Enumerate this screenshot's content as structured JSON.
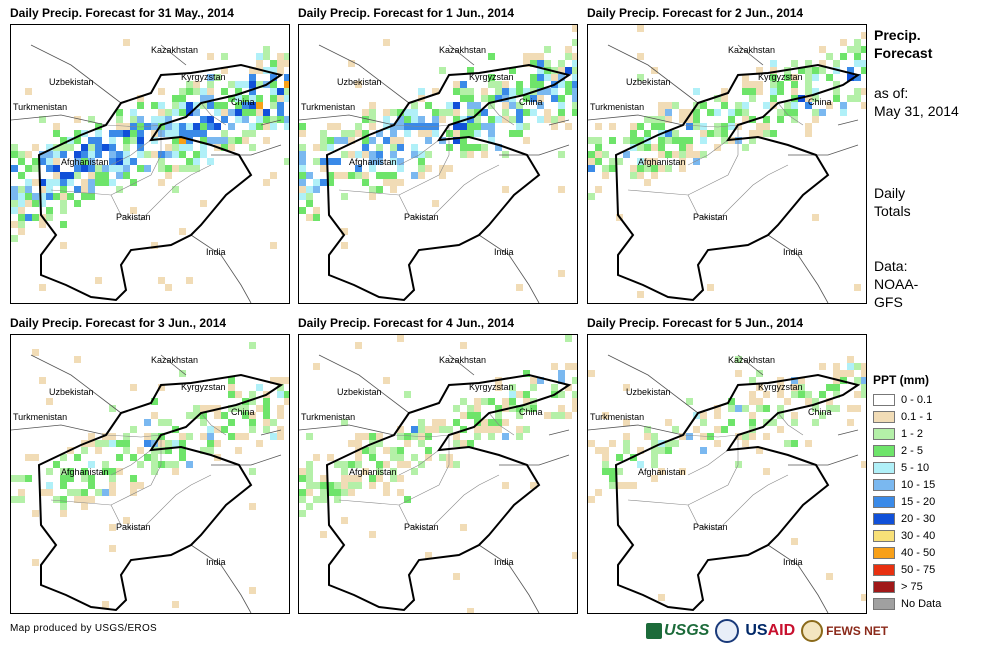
{
  "panels": [
    {
      "title": "Daily Precip. Forecast for 31 May., 2014",
      "intensity": 1.0
    },
    {
      "title": "Daily Precip. Forecast for 1 Jun., 2014",
      "intensity": 0.85
    },
    {
      "title": "Daily Precip. Forecast for 2 Jun., 2014",
      "intensity": 0.6
    },
    {
      "title": "Daily Precip. Forecast for 3 Jun., 2014",
      "intensity": 0.55
    },
    {
      "title": "Daily Precip. Forecast for 4 Jun., 2014",
      "intensity": 0.5
    },
    {
      "title": "Daily Precip. Forecast for 5 Jun., 2014",
      "intensity": 0.45
    }
  ],
  "map_labels": {
    "kazakhstan": "Kazakhstan",
    "kyrgyzstan": "Kyrgyzstan",
    "uzbekistan": "Uzbekistan",
    "turkmenistan": "Turkmenistan",
    "china": "China",
    "afghanistan": "Afghanistan",
    "pakistan": "Pakistan",
    "india": "India"
  },
  "sidebar": {
    "title_line1": "Precip.",
    "title_line2": "Forecast",
    "asof_line1": "as of:",
    "asof_line2": "May 31, 2014",
    "totals_line1": "Daily",
    "totals_line2": "Totals",
    "data_line1": "Data:",
    "data_line2": "NOAA-",
    "data_line3": "GFS"
  },
  "legend": {
    "title": "PPT (mm)",
    "items": [
      {
        "label": "0 - 0.1",
        "color": "#ffffff"
      },
      {
        "label": "0.1 - 1",
        "color": "#f1dcb6"
      },
      {
        "label": "1 - 2",
        "color": "#b4f0a8"
      },
      {
        "label": "2 - 5",
        "color": "#6ee46a"
      },
      {
        "label": "5 - 10",
        "color": "#b0f0f8"
      },
      {
        "label": "10 - 15",
        "color": "#7ab8f0"
      },
      {
        "label": "15 - 20",
        "color": "#3a8ae8"
      },
      {
        "label": "20 - 30",
        "color": "#1050d8"
      },
      {
        "label": "30 - 40",
        "color": "#f8e078"
      },
      {
        "label": "40 - 50",
        "color": "#f8a018"
      },
      {
        "label": "50 - 75",
        "color": "#e83010"
      },
      {
        "label": "> 75",
        "color": "#a01818"
      },
      {
        "label": "No Data",
        "color": "#a0a0a0"
      }
    ]
  },
  "credit": "Map produced by USGS/EROS",
  "logos": {
    "usgs": "USGS",
    "usaid_a": "US",
    "usaid_b": "AID",
    "fews": "FEWS NET"
  }
}
